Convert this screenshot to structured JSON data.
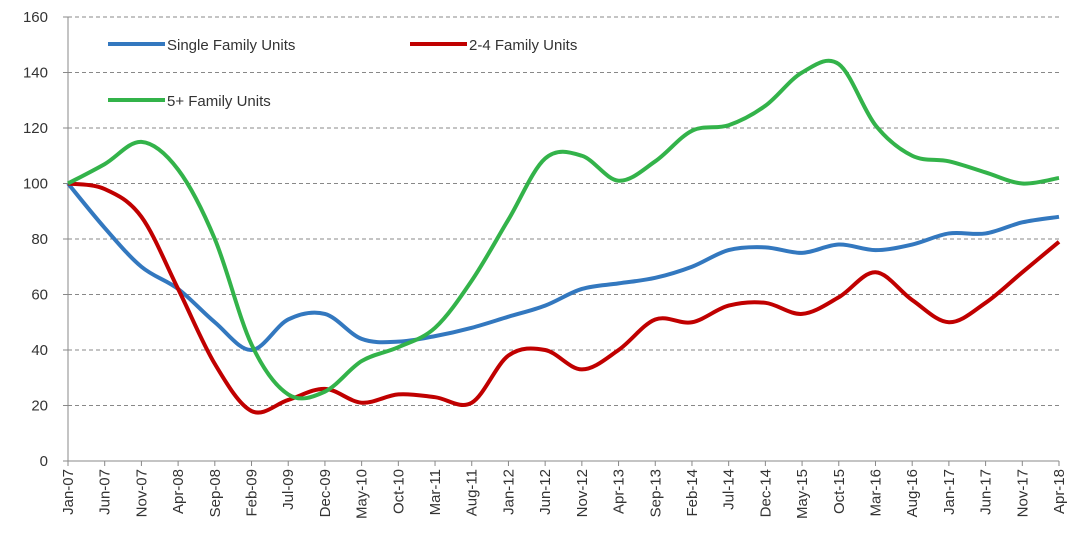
{
  "chart_data": {
    "type": "line",
    "categories": [
      "Jan-07",
      "Jun-07",
      "Nov-07",
      "Apr-08",
      "Sep-08",
      "Feb-09",
      "Jul-09",
      "Dec-09",
      "May-10",
      "Oct-10",
      "Mar-11",
      "Aug-11",
      "Jan-12",
      "Jun-12",
      "Nov-12",
      "Apr-13",
      "Sep-13",
      "Feb-14",
      "Jul-14",
      "Dec-14",
      "May-15",
      "Oct-15",
      "Mar-16",
      "Aug-16",
      "Jan-17",
      "Jun-17",
      "Nov-17",
      "Apr-18"
    ],
    "series": [
      {
        "name": "Single Family Units",
        "color": "#3378bf",
        "values": [
          100,
          84,
          70,
          62,
          50,
          40,
          51,
          53,
          44,
          43,
          45,
          48,
          52,
          56,
          62,
          64,
          66,
          70,
          76,
          77,
          75,
          78,
          76,
          78,
          82,
          82,
          86,
          88
        ]
      },
      {
        "name": "2-4 Family Units",
        "color": "#c00000",
        "values": [
          100,
          98,
          88,
          62,
          35,
          18,
          22,
          26,
          21,
          24,
          23,
          21,
          38,
          40,
          33,
          40,
          51,
          50,
          56,
          57,
          53,
          59,
          68,
          58,
          50,
          57,
          68,
          79
        ]
      },
      {
        "name": "5+ Family Units",
        "color": "#33b34a",
        "values": [
          100,
          107,
          115,
          105,
          80,
          42,
          24,
          25,
          36,
          41,
          48,
          65,
          87,
          109,
          110,
          101,
          108,
          119,
          121,
          128,
          140,
          143,
          121,
          110,
          108,
          104,
          100,
          102
        ]
      }
    ],
    "ylim": [
      0,
      160
    ],
    "yticks": [
      0,
      20,
      40,
      60,
      80,
      100,
      120,
      140,
      160
    ],
    "grid": true,
    "legend": "top-left"
  }
}
